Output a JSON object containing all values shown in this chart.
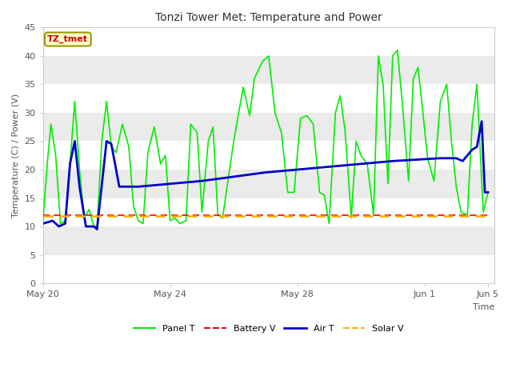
{
  "title": "Tonzi Tower Met: Temperature and Power",
  "xlabel": "Time",
  "ylabel": "Temperature (C) / Power (V)",
  "ylim": [
    0,
    45
  ],
  "yticks": [
    0,
    5,
    10,
    15,
    20,
    25,
    30,
    35,
    40,
    45
  ],
  "annotation_text": "TZ_tmet",
  "annotation_color": "#cc0000",
  "annotation_bg": "#ffffcc",
  "annotation_edge": "#999900",
  "legend_entries": [
    "Panel T",
    "Battery V",
    "Air T",
    "Solar V"
  ],
  "legend_colors": [
    "#00ee00",
    "#ee0000",
    "#0000cc",
    "#ffaa00"
  ],
  "legend_styles": [
    "-",
    "--",
    "-",
    "--"
  ],
  "panel_t": {
    "color": "#00ee00",
    "linestyle": "-",
    "linewidth": 1.2,
    "points": [
      [
        0,
        11.0
      ],
      [
        0.15,
        22.0
      ],
      [
        0.25,
        28.0
      ],
      [
        0.4,
        22.5
      ],
      [
        0.55,
        10.5
      ],
      [
        0.7,
        11.0
      ],
      [
        0.85,
        21.0
      ],
      [
        1.0,
        32.0
      ],
      [
        1.15,
        20.0
      ],
      [
        1.3,
        11.5
      ],
      [
        1.45,
        13.0
      ],
      [
        1.6,
        10.0
      ],
      [
        1.7,
        10.0
      ],
      [
        1.85,
        25.0
      ],
      [
        2.0,
        32.0
      ],
      [
        2.15,
        24.0
      ],
      [
        2.3,
        23.0
      ],
      [
        2.5,
        28.0
      ],
      [
        2.7,
        24.0
      ],
      [
        2.85,
        13.5
      ],
      [
        3.0,
        11.0
      ],
      [
        3.15,
        10.5
      ],
      [
        3.3,
        23.0
      ],
      [
        3.5,
        27.5
      ],
      [
        3.7,
        21.0
      ],
      [
        3.85,
        22.5
      ],
      [
        4.0,
        11.0
      ],
      [
        4.15,
        11.5
      ],
      [
        4.3,
        10.5
      ],
      [
        4.5,
        11.0
      ],
      [
        4.65,
        28.0
      ],
      [
        4.85,
        26.5
      ],
      [
        5.0,
        12.5
      ],
      [
        5.2,
        25.0
      ],
      [
        5.35,
        27.5
      ],
      [
        5.5,
        12.0
      ],
      [
        5.65,
        11.5
      ],
      [
        6.0,
        25.0
      ],
      [
        6.3,
        34.5
      ],
      [
        6.5,
        29.5
      ],
      [
        6.65,
        36.0
      ],
      [
        6.9,
        39.0
      ],
      [
        7.1,
        40.0
      ],
      [
        7.3,
        30.0
      ],
      [
        7.5,
        26.5
      ],
      [
        7.7,
        16.0
      ],
      [
        7.9,
        16.0
      ],
      [
        8.1,
        29.0
      ],
      [
        8.3,
        29.5
      ],
      [
        8.5,
        28.0
      ],
      [
        8.7,
        16.0
      ],
      [
        8.85,
        15.5
      ],
      [
        9.0,
        10.5
      ],
      [
        9.2,
        30.0
      ],
      [
        9.35,
        33.0
      ],
      [
        9.5,
        27.0
      ],
      [
        9.7,
        11.5
      ],
      [
        9.85,
        25.0
      ],
      [
        10.0,
        22.5
      ],
      [
        10.2,
        21.0
      ],
      [
        10.4,
        12.0
      ],
      [
        10.55,
        40.0
      ],
      [
        10.7,
        35.0
      ],
      [
        10.85,
        17.5
      ],
      [
        11.0,
        40.0
      ],
      [
        11.15,
        41.0
      ],
      [
        11.3,
        32.0
      ],
      [
        11.5,
        18.0
      ],
      [
        11.65,
        36.0
      ],
      [
        11.8,
        38.0
      ],
      [
        11.95,
        30.0
      ],
      [
        12.1,
        22.0
      ],
      [
        12.3,
        18.0
      ],
      [
        12.5,
        32.0
      ],
      [
        12.7,
        35.0
      ],
      [
        12.85,
        25.0
      ],
      [
        13.0,
        17.0
      ],
      [
        13.15,
        12.5
      ],
      [
        13.35,
        12.0
      ],
      [
        13.5,
        28.0
      ],
      [
        13.65,
        35.0
      ],
      [
        13.85,
        12.5
      ],
      [
        14.0,
        16.0
      ]
    ]
  },
  "battery_v": {
    "color": "#ee0000",
    "linestyle": "--",
    "linewidth": 1.2,
    "points": [
      [
        0,
        12.0
      ],
      [
        14.0,
        12.0
      ]
    ]
  },
  "air_t": {
    "color": "#0000cc",
    "linestyle": "-",
    "linewidth": 2.0,
    "points": [
      [
        0,
        10.5
      ],
      [
        0.3,
        11.0
      ],
      [
        0.5,
        10.0
      ],
      [
        0.7,
        10.5
      ],
      [
        0.85,
        21.0
      ],
      [
        1.0,
        25.0
      ],
      [
        1.15,
        17.0
      ],
      [
        1.35,
        10.0
      ],
      [
        1.6,
        10.0
      ],
      [
        1.7,
        9.5
      ],
      [
        2.0,
        25.0
      ],
      [
        2.15,
        24.5
      ],
      [
        2.4,
        17.0
      ],
      [
        3.0,
        17.0
      ],
      [
        5.0,
        18.0
      ],
      [
        7.0,
        19.5
      ],
      [
        9.0,
        20.5
      ],
      [
        11.0,
        21.5
      ],
      [
        12.5,
        22.0
      ],
      [
        13.0,
        22.0
      ],
      [
        13.2,
        21.5
      ],
      [
        13.5,
        23.5
      ],
      [
        13.65,
        24.0
      ],
      [
        13.8,
        28.5
      ],
      [
        13.9,
        16.0
      ],
      [
        14.0,
        16.0
      ]
    ]
  },
  "solar_v": {
    "color": "#ffaa00",
    "linestyle": "--",
    "linewidth": 1.8,
    "points": [
      [
        0,
        11.8
      ],
      [
        14.0,
        11.8
      ]
    ]
  },
  "x_tick_positions": [
    0,
    4,
    8,
    12,
    16
  ],
  "x_tick_labels": [
    "May 20",
    "May 24",
    "May 28",
    "Jun 1",
    "Jun 5"
  ],
  "xlim": [
    0,
    14.2
  ],
  "band_colors": [
    "#ffffff",
    "#ebebeb"
  ]
}
